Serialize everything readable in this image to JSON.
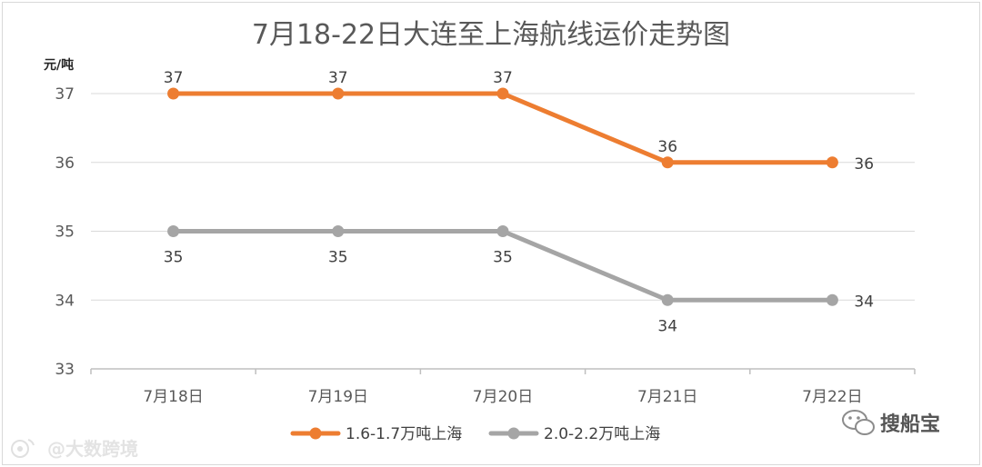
{
  "chart_data": {
    "type": "line",
    "title": "7月18-22日大连至上海航线运价走势图",
    "ylabel": "元/吨",
    "xlabel": "",
    "categories": [
      "7月18日",
      "7月19日",
      "7月20日",
      "7月21日",
      "7月22日"
    ],
    "ylim": [
      33,
      37
    ],
    "yticks": [
      33,
      34,
      35,
      36,
      37
    ],
    "grid": true,
    "legend_position": "bottom",
    "series": [
      {
        "name": "1.6-1.7万吨上海",
        "values": [
          37,
          37,
          37,
          36,
          36
        ],
        "color": "#ed7d31"
      },
      {
        "name": "2.0-2.2万吨上海",
        "values": [
          35,
          35,
          35,
          34,
          34
        ],
        "color": "#a5a5a5"
      }
    ]
  },
  "watermarks": {
    "left": "@大数跨境",
    "right": "搜船宝"
  },
  "icons": {
    "left_watermark": "weibo-icon",
    "right_watermark": "wechat-icon"
  }
}
